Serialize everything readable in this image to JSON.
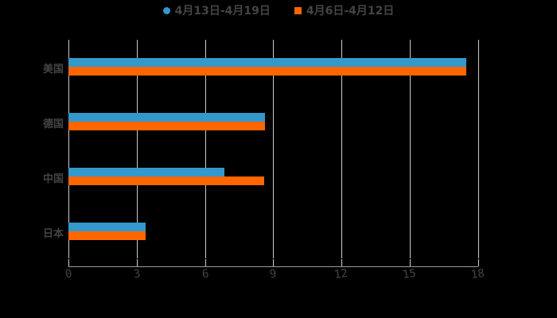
{
  "chart_data": {
    "type": "bar",
    "orientation": "horizontal",
    "title": "",
    "categories": [
      "美国",
      "德国",
      "中国",
      "日本"
    ],
    "series": [
      {
        "name": "4月13日-4月19日",
        "color": "#3399cc",
        "marker": "circle",
        "values": [
          17.5,
          8.65,
          6.85,
          3.4
        ]
      },
      {
        "name": "4月6日-4月12日",
        "color": "#ff6600",
        "marker": "square",
        "values": [
          17.5,
          8.65,
          8.62,
          3.4
        ]
      }
    ],
    "xlabel": "",
    "ylabel": "",
    "xlim": [
      0,
      18
    ],
    "xticks": [
      "0",
      "3",
      "6",
      "9",
      "12",
      "15",
      "18"
    ],
    "grid": "vertical",
    "legend_position": "top"
  },
  "legend": {
    "items": [
      {
        "label": "4月13日-4月19日",
        "color": "#3399cc"
      },
      {
        "label": "4月6日-4月12日",
        "color": "#ff6600"
      }
    ]
  }
}
